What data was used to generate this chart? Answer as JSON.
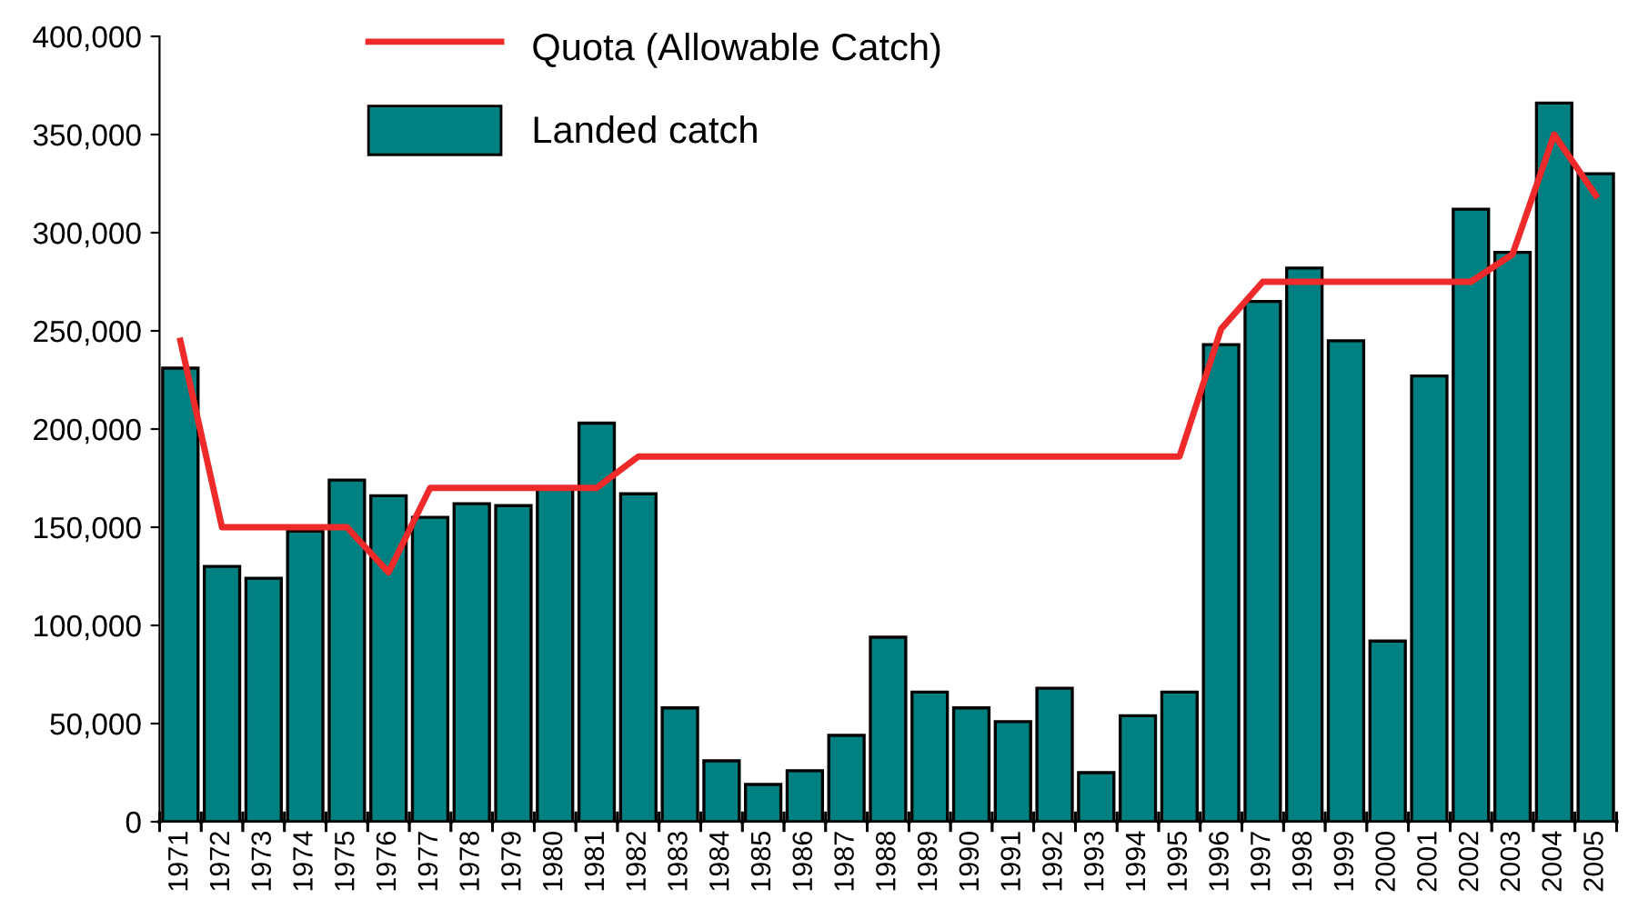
{
  "chart_data": {
    "type": "bar",
    "categories": [
      "1971",
      "1972",
      "1973",
      "1974",
      "1975",
      "1976",
      "1977",
      "1978",
      "1979",
      "1980",
      "1981",
      "1982",
      "1983",
      "1984",
      "1985",
      "1986",
      "1987",
      "1988",
      "1989",
      "1990",
      "1991",
      "1992",
      "1993",
      "1994",
      "1995",
      "1996",
      "1997",
      "1998",
      "1999",
      "2000",
      "2001",
      "2002",
      "2003",
      "2004",
      "2005"
    ],
    "series": [
      {
        "name": "Quota (Allowable Catch)",
        "type": "line",
        "color": "#ee2a2a",
        "values": [
          245000,
          150000,
          150000,
          150000,
          150000,
          127000,
          170000,
          170000,
          170000,
          170000,
          170000,
          186000,
          186000,
          186000,
          186000,
          186000,
          186000,
          186000,
          186000,
          186000,
          186000,
          186000,
          186000,
          186000,
          186000,
          251000,
          275000,
          275000,
          275000,
          275000,
          275000,
          275000,
          289000,
          350000,
          319000
        ]
      },
      {
        "name": "Landed catch",
        "color": "#008080",
        "values": [
          231000,
          130000,
          124000,
          148000,
          174000,
          166000,
          155000,
          162000,
          161000,
          170000,
          203000,
          167000,
          58000,
          31000,
          19000,
          26000,
          44000,
          94000,
          66000,
          58000,
          51000,
          68000,
          25000,
          54000,
          66000,
          243000,
          265000,
          282000,
          245000,
          92000,
          227000,
          312000,
          290000,
          366000,
          330000
        ]
      }
    ],
    "ylim": [
      0,
      400000
    ],
    "yticks": [
      {
        "value": 0,
        "label": "0"
      },
      {
        "value": 50000,
        "label": "50,000"
      },
      {
        "value": 100000,
        "label": "100,000"
      },
      {
        "value": 150000,
        "label": "150,000"
      },
      {
        "value": 200000,
        "label": "200,000"
      },
      {
        "value": 250000,
        "label": "250,000"
      },
      {
        "value": 300000,
        "label": "300,000"
      },
      {
        "value": 350000,
        "label": "350,000"
      },
      {
        "value": 400000,
        "label": "400,000"
      }
    ],
    "grid": false,
    "legend": "top"
  }
}
